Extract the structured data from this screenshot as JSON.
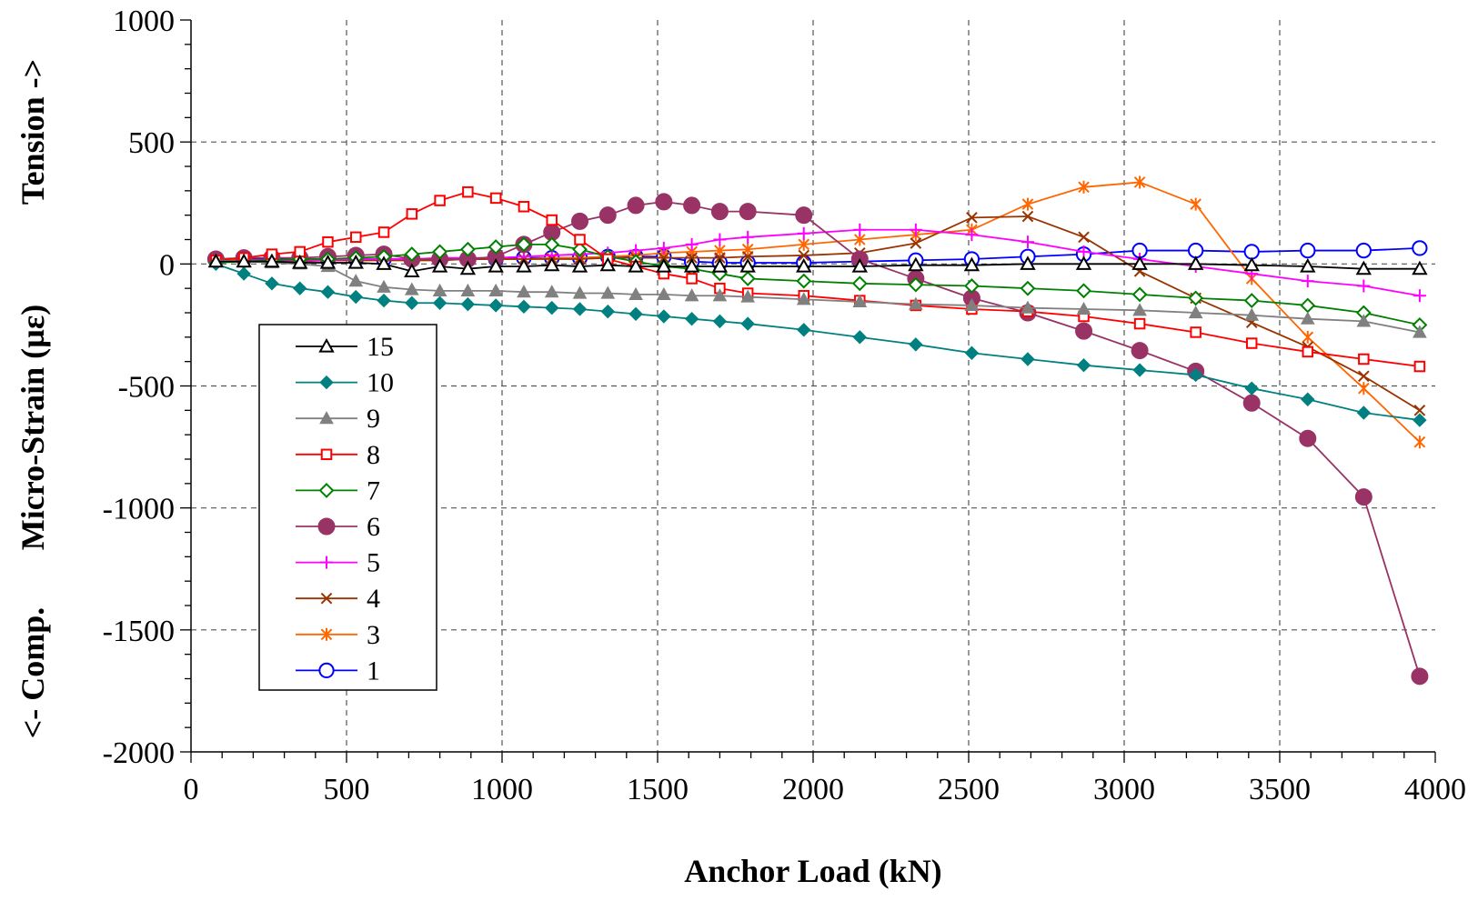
{
  "chart_data": {
    "type": "line",
    "title": "",
    "xlabel": "Anchor Load (kN)",
    "ylabel_parts": [
      "<- Comp.",
      "Micro-Strain (µε)",
      "Tension ->"
    ],
    "xlim": [
      0,
      4000
    ],
    "ylim": [
      -2000,
      1000
    ],
    "xticks": [
      0,
      500,
      1000,
      1500,
      2000,
      2500,
      3000,
      3500,
      4000
    ],
    "yticks": [
      -2000,
      -1500,
      -1000,
      -500,
      0,
      500,
      1000
    ],
    "grid": true,
    "legend_position": "lower-left",
    "x": [
      80,
      170,
      260,
      350,
      440,
      530,
      620,
      710,
      800,
      890,
      980,
      1070,
      1160,
      1250,
      1340,
      1430,
      1520,
      1610,
      1700,
      1790,
      1970,
      2150,
      2330,
      2510,
      2690,
      2870,
      3050,
      3230,
      3410,
      3590,
      3770,
      3950
    ],
    "series": [
      {
        "name": "15",
        "color": "#000000",
        "marker": "triangle-open",
        "values": [
          10,
          10,
          10,
          5,
          5,
          5,
          0,
          -30,
          -10,
          -20,
          -10,
          -10,
          -5,
          -10,
          -5,
          -10,
          -10,
          -10,
          -10,
          -10,
          -10,
          -10,
          -5,
          -5,
          0,
          0,
          0,
          0,
          -5,
          -10,
          -20,
          -20
        ]
      },
      {
        "name": "10",
        "color": "#008080",
        "marker": "diamond-filled",
        "values": [
          0,
          -40,
          -80,
          -100,
          -115,
          -135,
          -150,
          -160,
          -160,
          -165,
          -170,
          -175,
          -180,
          -185,
          -195,
          -205,
          -215,
          -225,
          -235,
          -245,
          -270,
          -300,
          -330,
          -365,
          -390,
          -415,
          -435,
          -455,
          -510,
          -555,
          -610,
          -640
        ]
      },
      {
        "name": "9",
        "color": "#808080",
        "marker": "triangle-filled",
        "values": [
          15,
          10,
          5,
          0,
          -10,
          -70,
          -95,
          -105,
          -110,
          -110,
          -110,
          -115,
          -115,
          -120,
          -120,
          -125,
          -125,
          -130,
          -130,
          -135,
          -145,
          -155,
          -165,
          -170,
          -180,
          -185,
          -190,
          -200,
          -210,
          -225,
          -235,
          -280
        ]
      },
      {
        "name": "8",
        "color": "#ff0000",
        "marker": "square-open",
        "values": [
          15,
          25,
          40,
          50,
          90,
          110,
          130,
          205,
          260,
          295,
          270,
          235,
          180,
          100,
          20,
          -10,
          -40,
          -60,
          -100,
          -120,
          -130,
          -150,
          -170,
          -185,
          -195,
          -215,
          -245,
          -280,
          -325,
          -360,
          -390,
          -420
        ]
      },
      {
        "name": "7",
        "color": "#008000",
        "marker": "diamond-open",
        "values": [
          5,
          10,
          15,
          20,
          20,
          25,
          30,
          40,
          50,
          60,
          70,
          80,
          80,
          60,
          30,
          10,
          -10,
          -20,
          -40,
          -60,
          -70,
          -80,
          -85,
          -90,
          -100,
          -110,
          -125,
          -140,
          -150,
          -170,
          -200,
          -250
        ]
      },
      {
        "name": "6",
        "color": "#993366",
        "marker": "circle-filled",
        "values": [
          20,
          25,
          25,
          25,
          30,
          35,
          40,
          20,
          20,
          20,
          30,
          80,
          130,
          175,
          200,
          240,
          255,
          240,
          215,
          215,
          200,
          20,
          -60,
          -140,
          -200,
          -275,
          -355,
          -440,
          -570,
          -715,
          -955,
          -1690
        ]
      },
      {
        "name": "5",
        "color": "#ff00ff",
        "marker": "plus",
        "values": [
          10,
          10,
          15,
          15,
          15,
          20,
          20,
          20,
          25,
          25,
          25,
          30,
          35,
          40,
          45,
          55,
          65,
          80,
          100,
          110,
          125,
          140,
          140,
          120,
          90,
          50,
          20,
          -10,
          -40,
          -70,
          -90,
          -130
        ]
      },
      {
        "name": "4",
        "color": "#993300",
        "marker": "x",
        "values": [
          10,
          10,
          10,
          10,
          15,
          15,
          15,
          15,
          15,
          20,
          20,
          20,
          20,
          20,
          25,
          25,
          25,
          25,
          25,
          30,
          35,
          45,
          85,
          190,
          195,
          110,
          -30,
          -140,
          -240,
          -340,
          -460,
          -600
        ]
      },
      {
        "name": "3",
        "color": "#ff6600",
        "marker": "asterisk",
        "values": [
          15,
          15,
          15,
          15,
          15,
          15,
          15,
          15,
          15,
          20,
          20,
          20,
          25,
          25,
          30,
          35,
          45,
          50,
          55,
          60,
          80,
          100,
          120,
          140,
          245,
          315,
          335,
          245,
          -60,
          -300,
          -510,
          -730
        ]
      },
      {
        "name": "1",
        "color": "#0000ff",
        "marker": "circle-open",
        "values": [
          20,
          20,
          20,
          20,
          20,
          20,
          20,
          20,
          20,
          20,
          20,
          25,
          25,
          25,
          30,
          30,
          30,
          10,
          5,
          5,
          5,
          10,
          15,
          20,
          30,
          40,
          55,
          55,
          50,
          55,
          55,
          65
        ]
      }
    ]
  }
}
